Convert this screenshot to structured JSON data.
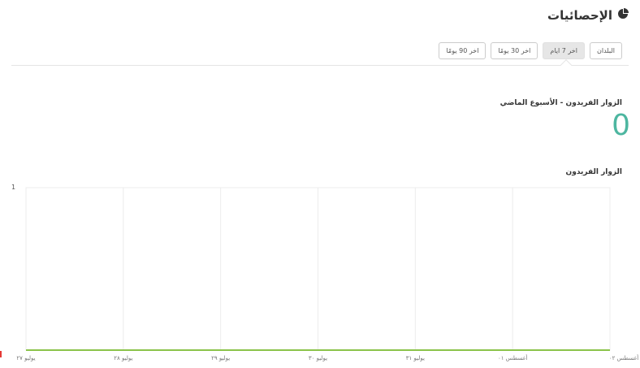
{
  "header": {
    "title": "الإحصائيات",
    "icon": "pie-chart-icon"
  },
  "tabs": [
    {
      "label": "البلدان",
      "active": false
    },
    {
      "label": "اخر 7 ايام",
      "active": true
    },
    {
      "label": "اخر 30 يومًا",
      "active": false
    },
    {
      "label": "اخر 90 يومًا",
      "active": false
    }
  ],
  "stat": {
    "label": "الزوار الفريدون - الأسبوع الماضي",
    "value": "0"
  },
  "colors": {
    "line": "#8bc34a",
    "value": "#4db6a0"
  },
  "chart_data": {
    "type": "line",
    "title": "الزوار الفريدون",
    "categories": [
      "يوليو ٢٧",
      "يوليو ٢٨",
      "يوليو ٢٩",
      "يوليو ٣٠",
      "يوليو ٣١",
      "أغسطس ٠١",
      "أغسطس ٠٢"
    ],
    "values": [
      0,
      0,
      0,
      0,
      0,
      0,
      0
    ],
    "ylim": [
      0,
      1
    ],
    "yticks": [
      "1"
    ],
    "grid": true
  }
}
